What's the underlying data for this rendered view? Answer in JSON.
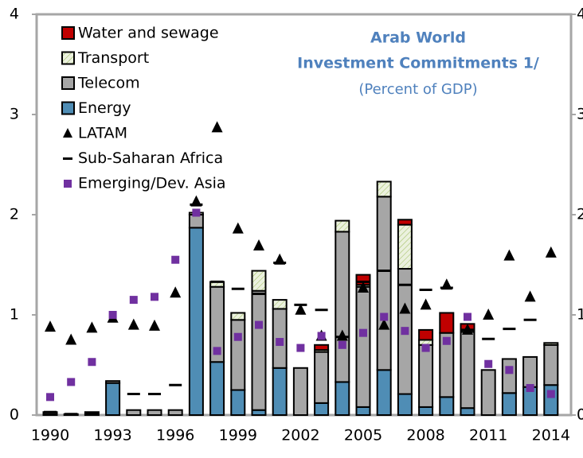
{
  "chart_data": {
    "type": "bar",
    "title": "Arab World",
    "subtitle": "Investment Commitments 1/",
    "note": "(Percent of GDP)",
    "categories": [
      "1990",
      null,
      null,
      "1993",
      null,
      null,
      "1996",
      null,
      null,
      "1999",
      null,
      null,
      "2002",
      null,
      null,
      "2005",
      null,
      null,
      "2008",
      null,
      null,
      "2011",
      null,
      null,
      "2014"
    ],
    "series": [
      {
        "name": "Energy",
        "color": "#4f8db5",
        "values": [
          0.01,
          0,
          0,
          0.32,
          0,
          0,
          0,
          1.87,
          0.53,
          0.25,
          0.05,
          0.47,
          0,
          0.12,
          0.33,
          0.08,
          0.45,
          0.21,
          0.08,
          0.18,
          0.07,
          0,
          0.22,
          0.28,
          0.3
        ]
      },
      {
        "name": "Telecom",
        "color": "#a6a6a6",
        "values": [
          0.02,
          0.01,
          0.03,
          0.02,
          0.05,
          0.05,
          0.05,
          0.13,
          0.75,
          0.7,
          1.19,
          0.59,
          0.47,
          0.51,
          1.5,
          1.2,
          1.73,
          1.25,
          0.62,
          0.64,
          0.76,
          0.45,
          0.34,
          0.3,
          0.4
        ]
      },
      {
        "name": "Transport",
        "color": "#ebf1de",
        "values": [
          0,
          0,
          0,
          0,
          0,
          0,
          0,
          0.02,
          0.05,
          0.07,
          0.2,
          0.09,
          0,
          0.02,
          0.11,
          0.02,
          0.15,
          0.44,
          0.05,
          0,
          0.02,
          0,
          0,
          0,
          0.02
        ]
      },
      {
        "name": "Water and sewage",
        "color": "#c00000",
        "values": [
          0,
          0,
          0,
          0,
          0,
          0,
          0,
          0,
          0,
          0,
          0,
          0,
          0,
          0.05,
          0,
          0.1,
          0,
          0.05,
          0.1,
          0.2,
          0.06,
          0,
          0,
          0,
          0
        ]
      },
      {
        "name": "LATAM",
        "type": "triangle",
        "color": "#000000",
        "values": [
          0.88,
          0.75,
          0.87,
          0.97,
          0.9,
          0.89,
          1.22,
          2.13,
          2.87,
          1.86,
          1.69,
          1.55,
          1.05,
          0.79,
          0.79,
          1.27,
          0.9,
          1.06,
          1.1,
          1.3,
          0.85,
          1.0,
          1.59,
          1.18,
          1.62
        ]
      },
      {
        "name": "Sub-Saharan Africa",
        "type": "dash",
        "color": "#000000",
        "values": [
          0.03,
          0.01,
          0.02,
          null,
          0.21,
          0.21,
          0.3,
          2.1,
          1.33,
          1.26,
          1.21,
          1.52,
          1.1,
          1.05,
          0.78,
          1.33,
          1.44,
          1.3,
          1.25,
          1.27,
          0.85,
          0.76,
          0.86,
          0.95,
          null
        ]
      },
      {
        "name": "Emerging/Dev. Asia",
        "type": "square",
        "color": "#7030a0",
        "values": [
          0.18,
          0.33,
          0.53,
          1.0,
          1.15,
          1.18,
          1.55,
          2.02,
          0.64,
          0.78,
          0.9,
          0.73,
          0.67,
          0.79,
          0.7,
          0.82,
          0.98,
          0.84,
          0.67,
          0.74,
          0.98,
          0.51,
          0.45,
          0.27,
          0.21
        ]
      }
    ],
    "ylim": [
      0,
      4
    ],
    "yticks": [
      0,
      1,
      2,
      3,
      4
    ],
    "y2lim": [
      0,
      4
    ],
    "y2ticks": [
      0,
      1,
      2,
      3,
      4
    ]
  }
}
